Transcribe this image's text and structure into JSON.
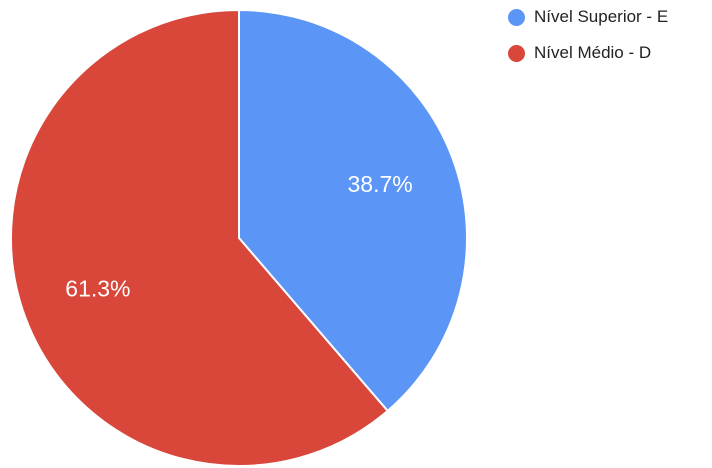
{
  "chart_data": {
    "type": "pie",
    "title": "",
    "start_angle_deg": 0,
    "direction": "clockwise",
    "legend_position": "top-right",
    "slices": [
      {
        "label": "Nível Superior - E",
        "value": 38.7,
        "value_label": "38.7%",
        "color": "#5b95f5"
      },
      {
        "label": "Nível Médio - D",
        "value": 61.3,
        "value_label": "61.3%",
        "color": "#d9463a"
      }
    ]
  }
}
